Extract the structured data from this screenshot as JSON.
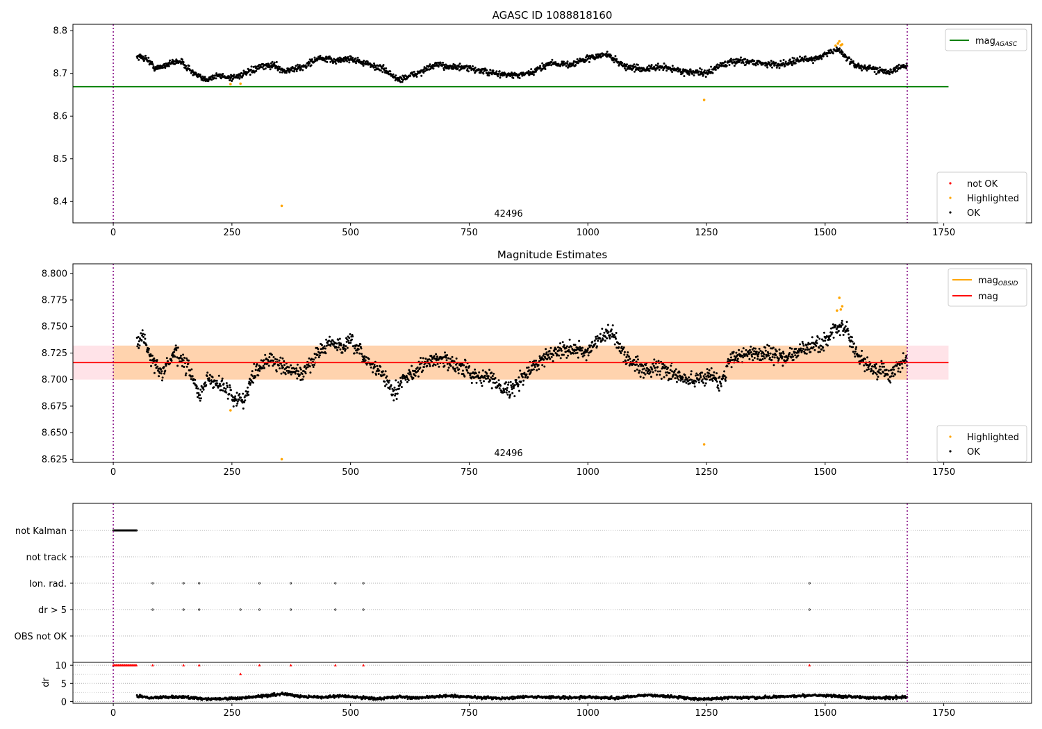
{
  "chart_data": [
    {
      "type": "scatter",
      "title": "AGASC ID 1088818160",
      "xlim": [
        -85,
        1935
      ],
      "ylim": [
        8.35,
        8.815
      ],
      "xticks": [
        0,
        250,
        500,
        750,
        1000,
        1250,
        1500,
        1750
      ],
      "yticks": [
        8.4,
        8.5,
        8.6,
        8.7,
        8.8
      ],
      "ytick_labels": [
        "8.4",
        "8.5",
        "8.6",
        "8.7",
        "8.8"
      ],
      "annotation": "42496",
      "hline": {
        "name": "mag_AGASC",
        "label_main": "mag",
        "label_sub": "AGASC",
        "y": 8.669,
        "x_range": [
          -85,
          1760
        ],
        "color": "#008000"
      },
      "vlines": [
        0,
        1673
      ],
      "legend_lines_position": "top-right",
      "legend_points_position": "bottom-right",
      "legend_points": [
        {
          "label": "not OK",
          "color": "#ff0000"
        },
        {
          "label": "Highlighted",
          "color": "#ffa500"
        },
        {
          "label": "OK",
          "color": "#000000"
        }
      ],
      "highlighted_points": [
        [
          355,
          8.39
        ],
        [
          1245,
          8.638
        ],
        [
          247,
          8.675
        ],
        [
          268,
          8.676
        ],
        [
          1522,
          8.765
        ],
        [
          1527,
          8.77
        ],
        [
          1530,
          8.775
        ],
        [
          1533,
          8.766
        ],
        [
          1536,
          8.768
        ]
      ],
      "series_ok_trend": {
        "x": [
          50,
          70,
          90,
          110,
          140,
          170,
          190,
          220,
          250,
          280,
          310,
          340,
          360,
          400,
          430,
          470,
          500,
          540,
          570,
          600,
          640,
          680,
          720,
          760,
          800,
          850,
          880,
          920,
          960,
          1000,
          1040,
          1080,
          1120,
          1160,
          1200,
          1250,
          1280,
          1320,
          1360,
          1400,
          1440,
          1480,
          1510,
          1530,
          1560,
          1600,
          1640,
          1673
        ],
        "y": [
          8.74,
          8.735,
          8.71,
          8.72,
          8.73,
          8.7,
          8.685,
          8.695,
          8.69,
          8.7,
          8.715,
          8.72,
          8.705,
          8.715,
          8.735,
          8.73,
          8.735,
          8.72,
          8.71,
          8.685,
          8.7,
          8.72,
          8.715,
          8.71,
          8.7,
          8.695,
          8.7,
          8.725,
          8.72,
          8.735,
          8.745,
          8.715,
          8.71,
          8.715,
          8.705,
          8.7,
          8.72,
          8.73,
          8.725,
          8.72,
          8.73,
          8.735,
          8.75,
          8.755,
          8.72,
          8.71,
          8.705,
          8.72
        ]
      }
    },
    {
      "type": "scatter",
      "title": "Magnitude Estimates",
      "xlim": [
        -85,
        1935
      ],
      "ylim": [
        8.622,
        8.809
      ],
      "xticks": [
        0,
        250,
        500,
        750,
        1000,
        1250,
        1500,
        1750
      ],
      "yticks": [
        8.625,
        8.65,
        8.675,
        8.7,
        8.725,
        8.75,
        8.775,
        8.8
      ],
      "ytick_labels": [
        "8.625",
        "8.650",
        "8.675",
        "8.700",
        "8.725",
        "8.750",
        "8.775",
        "8.800"
      ],
      "annotation": "42496",
      "mag_line": {
        "name": "mag",
        "y": 8.716,
        "x_range": [
          -85,
          1760
        ],
        "color": "#ff0000"
      },
      "mag_obsid_band": {
        "name": "mag_OBSID",
        "label_main": "mag",
        "label_sub": "OBSID",
        "y_low": 8.7,
        "y_high": 8.732,
        "x_range": [
          0,
          1673
        ],
        "color": "#ffa500"
      },
      "pink_band": {
        "y_low": 8.7,
        "y_high": 8.732,
        "x_range": [
          -85,
          1760
        ],
        "color": "#ffc0cb"
      },
      "vlines": [
        0,
        1673
      ],
      "legend_points": [
        {
          "label": "Highlighted",
          "color": "#ffa500"
        },
        {
          "label": "OK",
          "color": "#000000"
        }
      ],
      "legend_lines": [
        {
          "main": "mag",
          "sub": "OBSID",
          "color": "#ffa500"
        },
        {
          "main": "mag",
          "sub": "",
          "color": "#ff0000"
        }
      ],
      "highlighted_points": [
        [
          247,
          8.671
        ],
        [
          1245,
          8.639
        ],
        [
          355,
          8.625
        ],
        [
          1525,
          8.765
        ],
        [
          1530,
          8.777
        ],
        [
          1533,
          8.766
        ],
        [
          1536,
          8.769
        ]
      ],
      "series_ok_trend": {
        "x": [
          50,
          65,
          80,
          100,
          130,
          160,
          180,
          200,
          230,
          260,
          280,
          300,
          330,
          360,
          400,
          430,
          460,
          480,
          500,
          540,
          570,
          590,
          610,
          640,
          680,
          720,
          760,
          800,
          830,
          850,
          880,
          920,
          960,
          1000,
          1030,
          1050,
          1080,
          1120,
          1160,
          1200,
          1230,
          1260,
          1280,
          1300,
          1340,
          1380,
          1420,
          1460,
          1500,
          1520,
          1545,
          1570,
          1600,
          1640,
          1673
        ],
        "y": [
          8.735,
          8.74,
          8.72,
          8.705,
          8.725,
          8.71,
          8.685,
          8.7,
          8.695,
          8.68,
          8.685,
          8.71,
          8.72,
          8.71,
          8.705,
          8.725,
          8.735,
          8.73,
          8.735,
          8.715,
          8.705,
          8.685,
          8.7,
          8.71,
          8.72,
          8.715,
          8.705,
          8.7,
          8.69,
          8.695,
          8.71,
          8.725,
          8.73,
          8.725,
          8.74,
          8.745,
          8.72,
          8.71,
          8.71,
          8.7,
          8.7,
          8.705,
          8.695,
          8.72,
          8.725,
          8.725,
          8.72,
          8.73,
          8.735,
          8.75,
          8.745,
          8.72,
          8.71,
          8.705,
          8.72
        ]
      }
    },
    {
      "type": "scatter",
      "title": "",
      "xlim": [
        -85,
        1935
      ],
      "ylim": [
        0,
        7
      ],
      "categories": [
        "not Kalman",
        "not track",
        "Ion. rad.",
        "dr > 5",
        "OBS not OK"
      ],
      "vlines": [
        0,
        1673
      ],
      "flags": {
        "not Kalman": {
          "x_range": [
            0,
            50
          ]
        },
        "not track": {
          "x": []
        },
        "Ion. rad.": {
          "x": [
            83,
            148,
            181,
            308,
            374,
            468,
            527,
            1467
          ]
        },
        "dr > 5": {
          "x": [
            83,
            148,
            181,
            268,
            308,
            374,
            468,
            527,
            1467
          ]
        },
        "OBS not OK": {
          "x": []
        }
      }
    },
    {
      "type": "scatter",
      "title": "",
      "ylabel": "dr",
      "xlim": [
        -85,
        1935
      ],
      "ylim": [
        -0.5,
        10.8
      ],
      "yticks": [
        0,
        5,
        10
      ],
      "ytick_labels": [
        "0",
        "5",
        "10"
      ],
      "xticks": [
        0,
        250,
        500,
        750,
        1000,
        1250,
        1500,
        1750
      ],
      "vlines": [
        0,
        1673
      ],
      "clipped_red_markers": {
        "y": 10,
        "x_range_dense": [
          0,
          50
        ],
        "x": [
          83,
          148,
          181,
          308,
          374,
          468,
          527,
          1467
        ]
      },
      "red_marker_low": [
        [
          268,
          7.6
        ]
      ],
      "series_ok_trend": {
        "x": [
          50,
          80,
          120,
          160,
          200,
          240,
          280,
          320,
          360,
          400,
          440,
          480,
          520,
          560,
          600,
          640,
          700,
          760,
          820,
          880,
          940,
          1000,
          1060,
          1120,
          1180,
          1240,
          1300,
          1360,
          1420,
          1480,
          1540,
          1600,
          1640,
          1673
        ],
        "y": [
          1.5,
          1.0,
          1.3,
          1.1,
          0.7,
          0.8,
          1.0,
          1.6,
          2.1,
          1.4,
          1.2,
          1.5,
          1.1,
          0.8,
          1.3,
          1.0,
          1.5,
          1.2,
          0.9,
          1.3,
          1.1,
          1.2,
          0.9,
          1.8,
          1.3,
          0.6,
          1.1,
          1.0,
          1.4,
          1.8,
          1.4,
          1.0,
          1.1,
          1.2
        ]
      }
    }
  ]
}
